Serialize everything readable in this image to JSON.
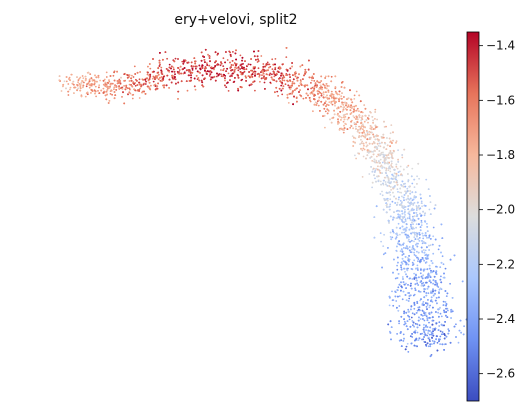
{
  "chart_data": {
    "type": "scatter",
    "title": "ery+velovi, split2",
    "colormap": "coolwarm",
    "colormap_stops": [
      "#3b4cc0",
      "#6f92f3",
      "#aac7fd",
      "#dcdddd",
      "#f7b89c",
      "#e7745b",
      "#b40426"
    ],
    "value_range": [
      -2.7,
      -1.35
    ],
    "colorbar_ticks": [
      -1.4,
      -1.6,
      -1.8,
      -2.0,
      -2.2,
      -2.4,
      -2.6
    ],
    "colorbar_tick_labels": [
      "−1.4",
      "−1.6",
      "−1.8",
      "−2.0",
      "−2.2",
      "−2.4",
      "−2.6"
    ],
    "axes_visible": false,
    "embedding_range": {
      "x": [
        0,
        100
      ],
      "y": [
        0,
        100
      ]
    },
    "trend": {
      "t": [
        0.0,
        0.1,
        0.2,
        0.3,
        0.4,
        0.5,
        0.6,
        0.7,
        0.8,
        0.9,
        1.0
      ],
      "x": [
        8,
        22,
        35,
        49,
        63,
        75,
        84,
        89,
        92,
        94,
        95
      ],
      "y": [
        88,
        86,
        91,
        92,
        89,
        81,
        69,
        55,
        41,
        27,
        12
      ],
      "value": [
        -1.8,
        -1.65,
        -1.5,
        -1.45,
        -1.55,
        -1.75,
        -1.95,
        -2.15,
        -2.3,
        -2.4,
        -2.45
      ]
    },
    "point_count": 5200
  }
}
